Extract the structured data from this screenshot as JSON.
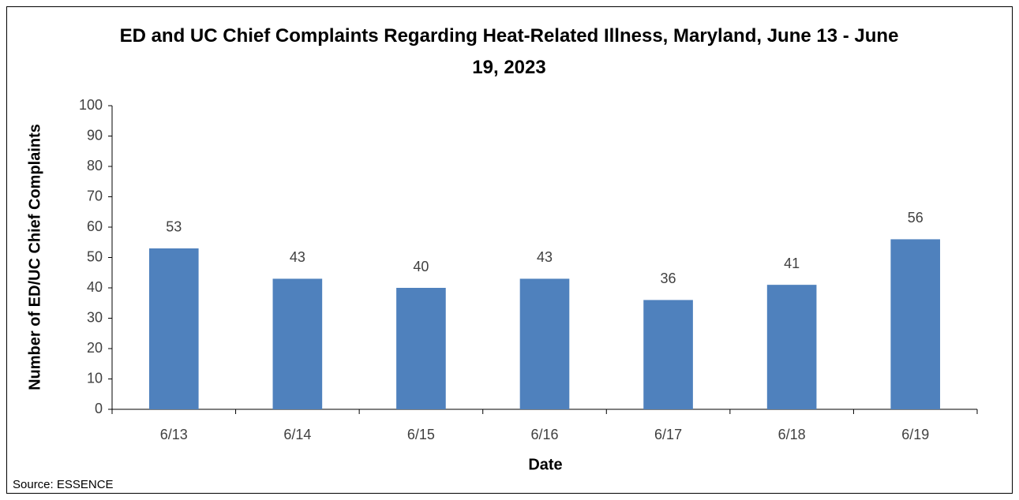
{
  "chart_data": {
    "type": "bar",
    "title": "ED and UC Chief Complaints Regarding Heat-Related Illness, Maryland, June 13 - June 19, 2023",
    "x_label": "Date",
    "y_label": "Number of ED/UC Chief Complaints",
    "source": "Source: ESSENCE",
    "categories": [
      "6/13",
      "6/14",
      "6/15",
      "6/16",
      "6/17",
      "6/18",
      "6/19"
    ],
    "values": [
      53,
      43,
      40,
      43,
      36,
      41,
      56
    ],
    "color": "#4f81bd",
    "ylim": [
      0,
      100
    ],
    "yticks": [
      0,
      10,
      20,
      30,
      40,
      50,
      60,
      70,
      80,
      90,
      100
    ],
    "grid": false
  }
}
